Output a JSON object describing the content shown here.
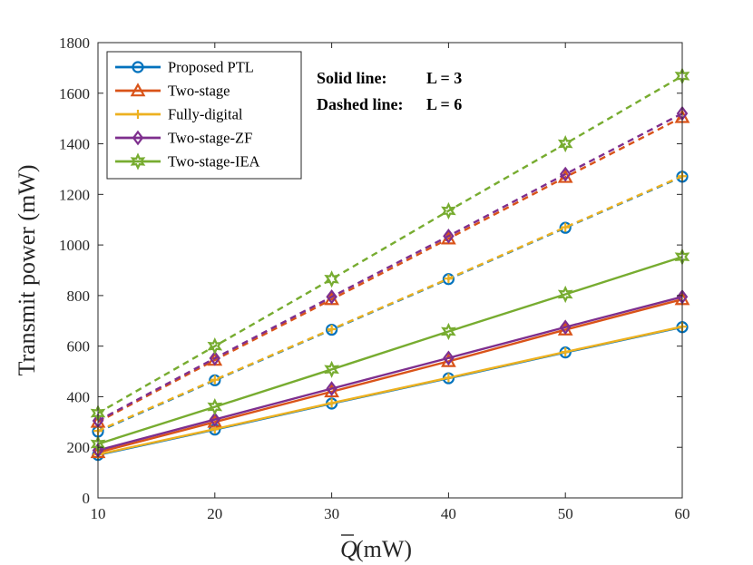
{
  "chart_data": {
    "type": "line",
    "title": "",
    "xlabel_main": "Q",
    "xlabel_unit": " (mW)",
    "ylabel": "Transmit power (mW)",
    "xlim": [
      10,
      60
    ],
    "ylim": [
      0,
      1800
    ],
    "x": [
      10,
      20,
      30,
      40,
      50,
      60
    ],
    "xticks": [
      10,
      20,
      30,
      40,
      50,
      60
    ],
    "yticks": [
      0,
      200,
      400,
      600,
      800,
      1000,
      1200,
      1400,
      1600,
      1800
    ],
    "grid": false,
    "legend_position": "top-left",
    "annotations": [
      {
        "label": "Solid line:",
        "value": "L = 3"
      },
      {
        "label": "Dashed line:",
        "value": "L = 6"
      }
    ],
    "series": [
      {
        "name": "Proposed PTL",
        "color": "#0072BD",
        "marker": "circle",
        "solid": [
          170,
          270,
          373,
          473,
          575,
          675
        ],
        "dashed": [
          262,
          465,
          665,
          865,
          1068,
          1270
        ]
      },
      {
        "name": "Two-stage",
        "color": "#D95319",
        "marker": "triangle",
        "solid": [
          180,
          300,
          420,
          540,
          665,
          785
        ],
        "dashed": [
          300,
          545,
          785,
          1025,
          1268,
          1505
        ]
      },
      {
        "name": "Fully-digital",
        "color": "#EDB120",
        "marker": "plus",
        "solid": [
          172,
          272,
          375,
          475,
          577,
          677
        ],
        "dashed": [
          265,
          467,
          667,
          867,
          1070,
          1272
        ]
      },
      {
        "name": "Two-stage-ZF",
        "color": "#7E2F8E",
        "marker": "diamond",
        "solid": [
          188,
          310,
          432,
          553,
          675,
          795
        ],
        "dashed": [
          305,
          552,
          795,
          1035,
          1280,
          1520
        ]
      },
      {
        "name": "Two-stage-IEA",
        "color": "#77AC30",
        "marker": "hexagram",
        "solid": [
          213,
          360,
          508,
          658,
          805,
          953
        ],
        "dashed": [
          335,
          600,
          865,
          1135,
          1400,
          1668
        ]
      }
    ]
  }
}
